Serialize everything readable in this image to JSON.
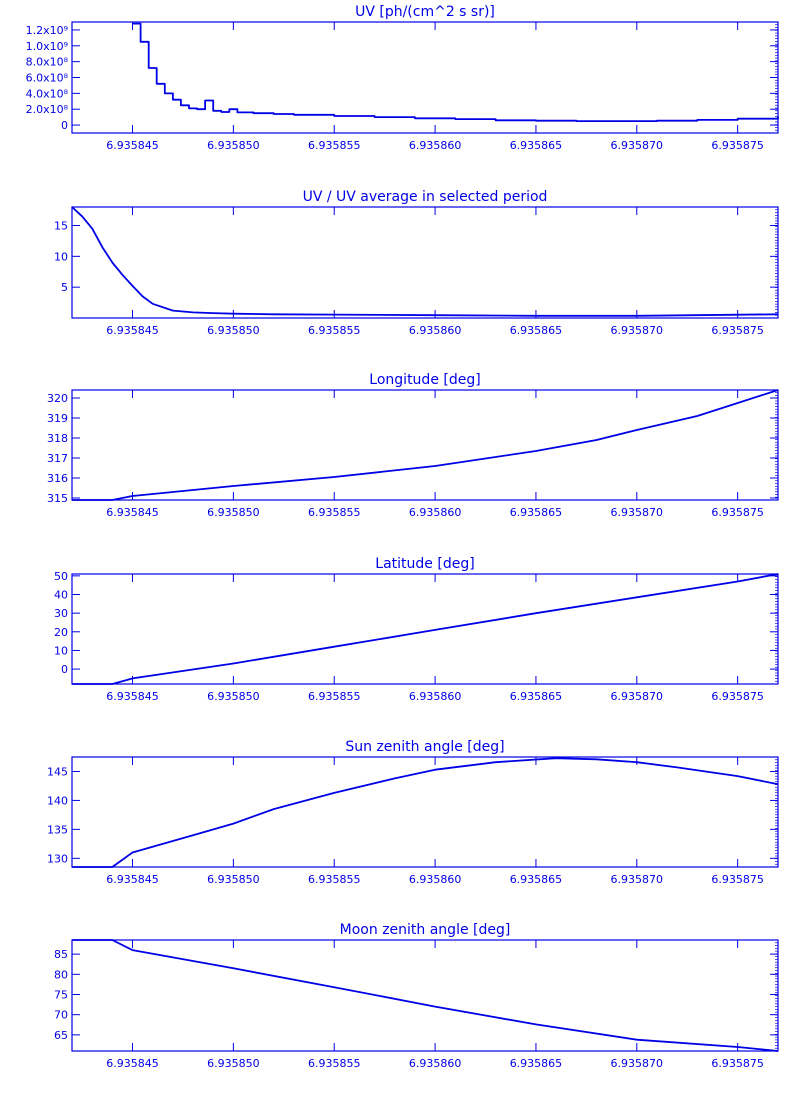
{
  "colors": {
    "plot": "#0000e6",
    "background": "#ffffff"
  },
  "chart_data": [
    {
      "type": "line",
      "title": "UV [ph/(cm^2 s sr)]",
      "xlim": [
        6.935842,
        6.935877
      ],
      "ylim": [
        -100000000.0,
        1300000000.0
      ],
      "x_ticks": [
        6.935845,
        6.93585,
        6.935855,
        6.93586,
        6.935865,
        6.93587,
        6.935875
      ],
      "x_tick_labels": [
        "6.935845",
        "6.935850",
        "6.935855",
        "6.935860",
        "6.935865",
        "6.935870",
        "6.935875"
      ],
      "y_ticks": [
        0,
        200000000.0,
        400000000.0,
        600000000.0,
        800000000.0,
        1000000000.0,
        1200000000.0
      ],
      "y_tick_labels": [
        "0",
        "2.0x10⁸",
        "4.0x10⁸",
        "6.0x10⁸",
        "8.0x10⁸",
        "1.0x10⁹",
        "1.2x10⁹"
      ],
      "step": true,
      "x": [
        6.935845,
        6.9358454,
        6.9358458,
        6.9358462,
        6.9358466,
        6.935847,
        6.9358474,
        6.9358478,
        6.9358482,
        6.9358486,
        6.935849,
        6.9358494,
        6.9358498,
        6.9358502,
        6.935851,
        6.935852,
        6.935853,
        6.935855,
        6.935857,
        6.935859,
        6.935861,
        6.935863,
        6.935865,
        6.935867,
        6.935869,
        6.935871,
        6.935873,
        6.935875,
        6.935877
      ],
      "y": [
        1280000000.0,
        1050000000.0,
        720000000.0,
        520000000.0,
        400000000.0,
        320000000.0,
        250000000.0,
        210000000.0,
        200000000.0,
        310000000.0,
        180000000.0,
        165000000.0,
        200000000.0,
        160000000.0,
        150000000.0,
        140000000.0,
        130000000.0,
        115000000.0,
        100000000.0,
        85000000.0,
        75000000.0,
        60000000.0,
        55000000.0,
        50000000.0,
        50000000.0,
        55000000.0,
        65000000.0,
        80000000.0,
        105000000.0
      ]
    },
    {
      "type": "line",
      "title": "UV / UV average in selected period",
      "xlim": [
        6.935842,
        6.935877
      ],
      "ylim": [
        0,
        18
      ],
      "x_ticks": [
        6.935845,
        6.93585,
        6.935855,
        6.93586,
        6.935865,
        6.93587,
        6.935875
      ],
      "x_tick_labels": [
        "6.935845",
        "6.935850",
        "6.935855",
        "6.935860",
        "6.935865",
        "6.935870",
        "6.935875"
      ],
      "y_ticks": [
        5,
        10,
        15
      ],
      "y_tick_labels": [
        "5",
        "10",
        "15"
      ],
      "x": [
        6.935842,
        6.9358425,
        6.935843,
        6.9358435,
        6.935844,
        6.9358445,
        6.935845,
        6.9358455,
        6.935846,
        6.935847,
        6.935848,
        6.935849,
        6.93585,
        6.935852,
        6.935855,
        6.93586,
        6.935865,
        6.93587,
        6.935877
      ],
      "y": [
        18,
        16.5,
        14.5,
        11.5,
        9,
        7,
        5.2,
        3.5,
        2.3,
        1.2,
        0.9,
        0.8,
        0.7,
        0.6,
        0.55,
        0.45,
        0.35,
        0.35,
        0.6
      ]
    },
    {
      "type": "line",
      "title": "Longitude [deg]",
      "xlim": [
        6.935842,
        6.935877
      ],
      "ylim": [
        314.9,
        320.4
      ],
      "x_ticks": [
        6.935845,
        6.93585,
        6.935855,
        6.93586,
        6.935865,
        6.93587,
        6.935875
      ],
      "x_tick_labels": [
        "6.935845",
        "6.935850",
        "6.935855",
        "6.935860",
        "6.935865",
        "6.935870",
        "6.935875"
      ],
      "y_ticks": [
        315,
        316,
        317,
        318,
        319,
        320
      ],
      "y_tick_labels": [
        "315",
        "316",
        "317",
        "318",
        "319",
        "320"
      ],
      "x": [
        6.935842,
        6.935844,
        6.935845,
        6.93585,
        6.935855,
        6.93586,
        6.935865,
        6.935868,
        6.93587,
        6.935873,
        6.935875,
        6.935877
      ],
      "y": [
        314.9,
        314.9,
        315.1,
        315.6,
        316.05,
        316.6,
        317.35,
        317.9,
        318.4,
        319.1,
        319.75,
        320.4
      ]
    },
    {
      "type": "line",
      "title": "Latitude [deg]",
      "xlim": [
        6.935842,
        6.935877
      ],
      "ylim": [
        -8,
        51
      ],
      "x_ticks": [
        6.935845,
        6.93585,
        6.935855,
        6.93586,
        6.935865,
        6.93587,
        6.935875
      ],
      "x_tick_labels": [
        "6.935845",
        "6.935850",
        "6.935855",
        "6.935860",
        "6.935865",
        "6.935870",
        "6.935875"
      ],
      "y_ticks": [
        0,
        10,
        20,
        30,
        40,
        50
      ],
      "y_tick_labels": [
        "0",
        "10",
        "20",
        "30",
        "40",
        "50"
      ],
      "x": [
        6.935842,
        6.935844,
        6.935845,
        6.93585,
        6.935855,
        6.93586,
        6.935865,
        6.93587,
        6.935875,
        6.935877
      ],
      "y": [
        -8,
        -8,
        -5,
        3,
        12,
        21,
        30,
        38.5,
        47,
        51
      ]
    },
    {
      "type": "line",
      "title": "Sun zenith angle [deg]",
      "xlim": [
        6.935842,
        6.935877
      ],
      "ylim": [
        128.5,
        147.5
      ],
      "x_ticks": [
        6.935845,
        6.93585,
        6.935855,
        6.93586,
        6.935865,
        6.93587,
        6.935875
      ],
      "x_tick_labels": [
        "6.935845",
        "6.935850",
        "6.935855",
        "6.935860",
        "6.935865",
        "6.935870",
        "6.935875"
      ],
      "y_ticks": [
        130,
        135,
        140,
        145
      ],
      "y_tick_labels": [
        "130",
        "135",
        "140",
        "145"
      ],
      "x": [
        6.935842,
        6.935844,
        6.935845,
        6.935848,
        6.93585,
        6.935852,
        6.935855,
        6.935858,
        6.93586,
        6.935863,
        6.935866,
        6.935868,
        6.93587,
        6.935872,
        6.935875,
        6.935877
      ],
      "y": [
        128.5,
        128.5,
        131,
        134,
        136,
        138.5,
        141.3,
        143.8,
        145.3,
        146.6,
        147.3,
        147.1,
        146.6,
        145.7,
        144.2,
        142.8
      ]
    },
    {
      "type": "line",
      "title": "Moon zenith angle [deg]",
      "xlim": [
        6.935842,
        6.935877
      ],
      "ylim": [
        61,
        88.5
      ],
      "x_ticks": [
        6.935845,
        6.93585,
        6.935855,
        6.93586,
        6.935865,
        6.93587,
        6.935875
      ],
      "x_tick_labels": [
        "6.935845",
        "6.935850",
        "6.935855",
        "6.935860",
        "6.935865",
        "6.935870",
        "6.935875"
      ],
      "y_ticks": [
        65,
        70,
        75,
        80,
        85
      ],
      "y_tick_labels": [
        "65",
        "70",
        "75",
        "80",
        "85"
      ],
      "x": [
        6.935842,
        6.935844,
        6.935845,
        6.93585,
        6.935855,
        6.93586,
        6.935865,
        6.93587,
        6.935875,
        6.935877
      ],
      "y": [
        88.5,
        88.5,
        86,
        81.5,
        76.8,
        72,
        67.6,
        63.8,
        62,
        61
      ]
    }
  ]
}
